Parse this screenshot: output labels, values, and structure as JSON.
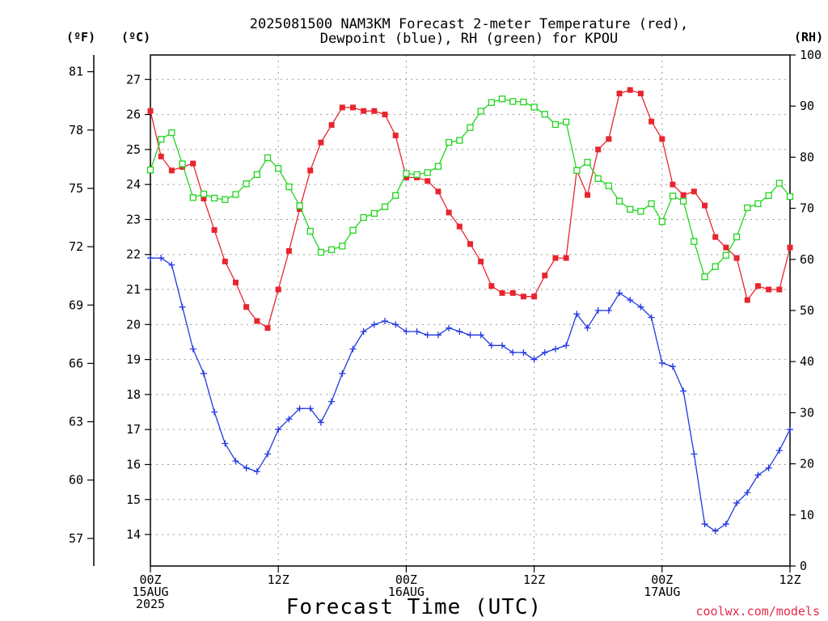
{
  "chart_data": {
    "type": "line",
    "title_lines": [
      "2025081500 NAM3KM Forecast 2-meter Temperature (red),",
      "Dewpoint (blue), RH (green) for KPOU"
    ],
    "units": {
      "fahrenheit": "(ºF)",
      "celsius": "(ºC)",
      "rh": "(RH)"
    },
    "xlabel": "Forecast Time (UTC)",
    "credit": "coolwx.com/models",
    "x_range_hours": [
      0,
      60
    ],
    "x_ticks": [
      {
        "hour": 0,
        "lines": [
          "00Z",
          "15AUG",
          "2025"
        ]
      },
      {
        "hour": 12,
        "lines": [
          "12Z"
        ]
      },
      {
        "hour": 24,
        "lines": [
          "00Z",
          "16AUG"
        ]
      },
      {
        "hour": 36,
        "lines": [
          "12Z"
        ]
      },
      {
        "hour": 48,
        "lines": [
          "00Z",
          "17AUG"
        ]
      },
      {
        "hour": 60,
        "lines": [
          "12Z"
        ]
      }
    ],
    "y_celsius": {
      "range": [
        13.1,
        27.7
      ],
      "ticks": [
        14,
        15,
        16,
        17,
        18,
        19,
        20,
        21,
        22,
        23,
        24,
        25,
        26,
        27
      ]
    },
    "y_fahrenheit": {
      "ticks": [
        57,
        60,
        63,
        66,
        69,
        72,
        75,
        78,
        81
      ]
    },
    "y_rh": {
      "range": [
        0,
        100
      ],
      "ticks": [
        0,
        10,
        20,
        30,
        40,
        50,
        60,
        70,
        80,
        90,
        100
      ]
    },
    "grid": true,
    "series": [
      {
        "name": "Temperature (red)",
        "axis": "celsius",
        "color": "#e8252f",
        "marker": "filled-square",
        "values": [
          26.1,
          24.8,
          24.4,
          24.5,
          24.6,
          23.6,
          22.7,
          21.8,
          21.2,
          20.5,
          20.1,
          19.9,
          21.0,
          22.1,
          23.3,
          24.4,
          25.2,
          25.7,
          26.2,
          26.2,
          26.1,
          26.1,
          26.0,
          25.4,
          24.2,
          24.2,
          24.1,
          23.8,
          23.2,
          22.8,
          22.3,
          21.8,
          21.1,
          20.9,
          20.9,
          20.8,
          20.8,
          21.4,
          21.9,
          21.9,
          24.4,
          23.7,
          25.0,
          25.3,
          26.6,
          26.7,
          26.6,
          25.8,
          25.3,
          24.0,
          23.7,
          23.8,
          23.4,
          22.5,
          22.2,
          21.9,
          20.7,
          21.1,
          21.0,
          21.0,
          22.2
        ]
      },
      {
        "name": "Dewpoint (blue)",
        "axis": "celsius",
        "color": "#2238e0",
        "marker": "plus",
        "values": [
          21.9,
          21.9,
          21.7,
          20.5,
          19.3,
          18.6,
          17.5,
          16.6,
          16.1,
          15.9,
          15.8,
          16.3,
          17.0,
          17.3,
          17.6,
          17.6,
          17.2,
          17.8,
          18.6,
          19.3,
          19.8,
          20.0,
          20.1,
          20.0,
          19.8,
          19.8,
          19.7,
          19.7,
          19.9,
          19.8,
          19.7,
          19.7,
          19.4,
          19.4,
          19.2,
          19.2,
          19.0,
          19.2,
          19.3,
          19.4,
          20.3,
          19.9,
          20.4,
          20.4,
          20.9,
          20.7,
          20.5,
          20.2,
          18.9,
          18.8,
          18.1,
          16.3,
          14.3,
          14.1,
          14.3,
          14.9,
          15.2,
          15.7,
          15.9,
          16.4,
          17.0
        ]
      },
      {
        "name": "RH (green)",
        "axis": "rh",
        "color": "#22d41e",
        "marker": "open-square",
        "values": [
          77.5,
          83.5,
          84.8,
          78.7,
          72.1,
          72.8,
          72.0,
          71.7,
          72.7,
          74.8,
          76.6,
          79.9,
          77.8,
          74.2,
          70.5,
          65.5,
          61.4,
          61.9,
          62.6,
          65.7,
          68.2,
          69.0,
          70.3,
          72.5,
          76.8,
          76.6,
          77.0,
          78.2,
          82.9,
          83.3,
          85.8,
          89.0,
          90.7,
          91.4,
          90.9,
          90.8,
          89.8,
          88.4,
          86.4,
          86.9,
          77.4,
          79.0,
          75.8,
          74.4,
          71.4,
          69.8,
          69.4,
          70.9,
          67.4,
          72.4,
          71.4,
          63.5,
          56.6,
          58.6,
          60.8,
          64.4,
          70.1,
          70.9,
          72.5,
          74.9,
          72.3
        ]
      }
    ]
  }
}
